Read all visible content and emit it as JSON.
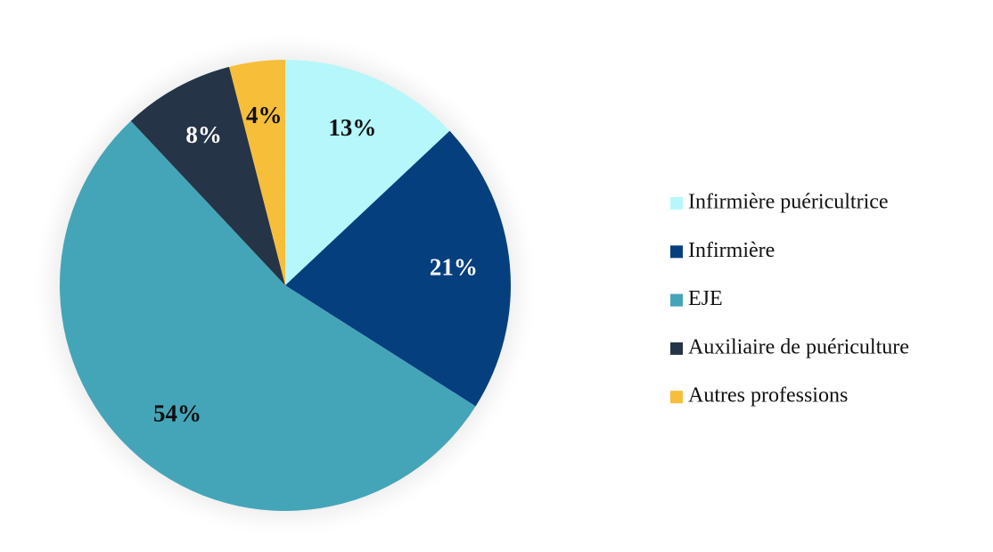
{
  "chart_data": {
    "type": "pie",
    "categories": [
      "Infirmière puéricultrice",
      "Infirmière",
      "EJE",
      "Auxiliaire de puériculture",
      "Autres professions"
    ],
    "values": [
      13,
      21,
      54,
      8,
      4
    ],
    "value_labels": [
      "13%",
      "21%",
      "54%",
      "8%",
      "4%"
    ],
    "colors": [
      "#b6f7fb",
      "#063f7e",
      "#44a5b8",
      "#253447",
      "#f7be3a"
    ],
    "label_colors": [
      "#111111",
      "#ffffff",
      "#111111",
      "#ffffff",
      "#111111"
    ],
    "legend": "right"
  }
}
